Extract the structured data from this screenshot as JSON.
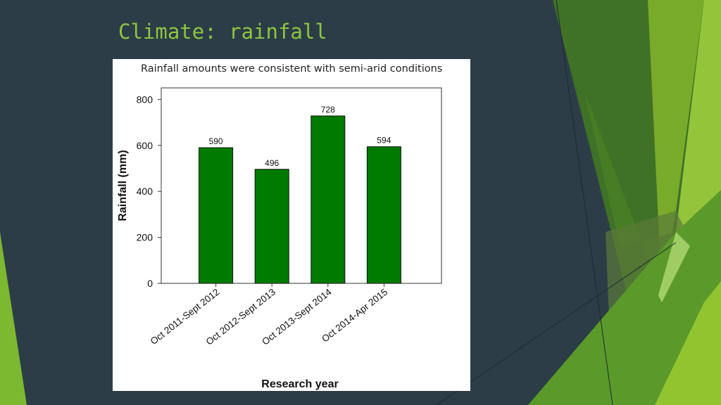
{
  "slide": {
    "title": "Climate: rainfall"
  },
  "chart_data": {
    "type": "bar",
    "title": "Rainfall amounts were consistent with semi-arid conditions",
    "categories": [
      "Oct 2011-Sept 2012",
      "Oct 2012-Sept 2013",
      "Oct 2013-Sept 2014",
      "Oct 2014-Apr 2015"
    ],
    "values": [
      590,
      496,
      728,
      594
    ],
    "data_labels": [
      "590",
      "496",
      "728",
      "594"
    ],
    "xlabel": "Research year",
    "ylabel": "Rainfall (mm)",
    "ylim": [
      0,
      850
    ],
    "yticks": [
      0,
      200,
      400,
      600,
      800
    ],
    "ytick_labels": [
      "0",
      "200",
      "400",
      "600",
      "800"
    ],
    "grid": false,
    "bar_color": "#007a00"
  },
  "theme": {
    "background": "#2c3d48",
    "accent": "#8cc63e"
  }
}
